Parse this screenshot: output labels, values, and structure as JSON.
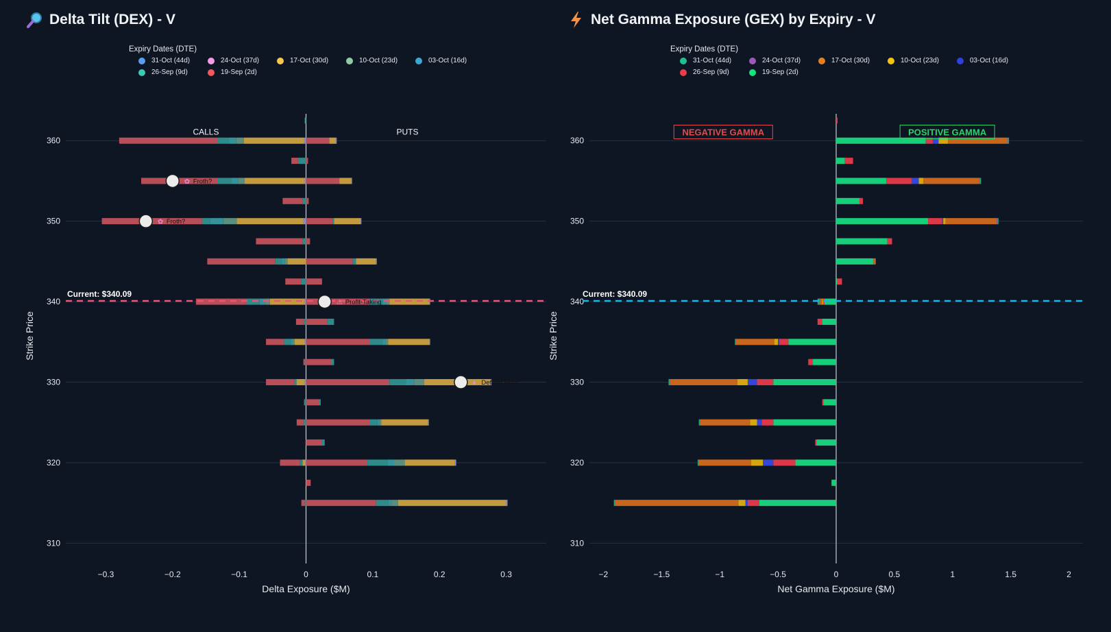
{
  "chart_data": [
    {
      "id": "dex",
      "type": "bar",
      "orientation": "horizontal",
      "stacked": true,
      "title": "Delta Tilt (DEX) - V",
      "title_icon": "magnifier-icon",
      "xlabel": "Delta Exposure ($M)",
      "ylabel": "Strike Price",
      "xlim": [
        -0.36,
        0.36
      ],
      "ylim": [
        308.5,
        363
      ],
      "xticks": [
        -0.3,
        -0.2,
        -0.1,
        0,
        0.1,
        0.2,
        0.3
      ],
      "xtick_labels": [
        "−0.3",
        "−0.2",
        "−0.1",
        "0",
        "0.1",
        "0.2",
        "0.3"
      ],
      "yticks": [
        310,
        320,
        330,
        340,
        350,
        360
      ],
      "legend_title": "Expiry Dates (DTE)",
      "series": [
        {
          "name": "31-Oct (44d)",
          "color": "#5b9bf0",
          "bar_color": "#7e8fcf"
        },
        {
          "name": "24-Oct (37d)",
          "color": "#f59be6",
          "bar_color": "#9a7fb8"
        },
        {
          "name": "17-Oct (30d)",
          "color": "#f7c84a",
          "bar_color": "#c49a3f"
        },
        {
          "name": "10-Oct (23d)",
          "color": "#8fcca6",
          "bar_color": "#5a8f7e"
        },
        {
          "name": "03-Oct (16d)",
          "color": "#3aa9d0",
          "bar_color": "#36939b"
        },
        {
          "name": "26-Sep (9d)",
          "color": "#3cc9b6",
          "bar_color": "#2f8a8a"
        },
        {
          "name": "19-Sep (2d)",
          "color": "#f5575f",
          "bar_color": "#b84e58"
        }
      ],
      "rows": [
        {
          "strike": 362.5,
          "neg": [
            0,
            0,
            0,
            0,
            0,
            0.002,
            0
          ],
          "pos": [
            0,
            0,
            0,
            0,
            0,
            0,
            0
          ]
        },
        {
          "strike": 360,
          "neg": [
            0.003,
            0,
            0.09,
            0.012,
            0.01,
            0.018,
            0.147
          ],
          "pos": [
            0.001,
            0,
            0.01,
            0,
            0,
            0,
            0.035
          ]
        },
        {
          "strike": 357.5,
          "neg": [
            0,
            0,
            0,
            0,
            0,
            0.012,
            0.01
          ],
          "pos": [
            0,
            0,
            0,
            0,
            0,
            0,
            0.003
          ]
        },
        {
          "strike": 355,
          "neg": [
            0.002,
            0,
            0.09,
            0.01,
            0.01,
            0.02,
            0.115
          ],
          "pos": [
            0.001,
            0,
            0.018,
            0,
            0,
            0,
            0.05
          ]
        },
        {
          "strike": 352.5,
          "neg": [
            0,
            0,
            0,
            0,
            0,
            0.005,
            0.03
          ],
          "pos": [
            0,
            0,
            0,
            0,
            0,
            0,
            0.004
          ]
        },
        {
          "strike": 350,
          "neg": [
            0.004,
            0,
            0.1,
            0.02,
            0.02,
            0.012,
            0.15
          ],
          "pos": [
            0.001,
            0,
            0.04,
            0,
            0,
            0.002,
            0.04
          ]
        },
        {
          "strike": 347.5,
          "neg": [
            0,
            0,
            0,
            0,
            0,
            0.005,
            0.07
          ],
          "pos": [
            0,
            0,
            0,
            0,
            0,
            0,
            0.006
          ]
        },
        {
          "strike": 345,
          "neg": [
            0,
            0,
            0.028,
            0.004,
            0.004,
            0.01,
            0.102
          ],
          "pos": [
            0.001,
            0,
            0.03,
            0,
            0,
            0.005,
            0.07
          ]
        },
        {
          "strike": 342.5,
          "neg": [
            0,
            0,
            0,
            0,
            0,
            0.007,
            0.024
          ],
          "pos": [
            0,
            0,
            0,
            0,
            0,
            0,
            0.024
          ]
        },
        {
          "strike": 340,
          "neg": [
            0.002,
            0,
            0.052,
            0.008,
            0.008,
            0.02,
            0.075
          ],
          "pos": [
            0.001,
            0,
            0.06,
            0.005,
            0.005,
            0.02,
            0.095
          ]
        },
        {
          "strike": 337.5,
          "neg": [
            0,
            0,
            0,
            0,
            0,
            0.003,
            0.012
          ],
          "pos": [
            0,
            0,
            0,
            0,
            0,
            0.01,
            0.032
          ]
        },
        {
          "strike": 335,
          "neg": [
            0.002,
            0,
            0.015,
            0.003,
            0.003,
            0.01,
            0.027
          ],
          "pos": [
            0.001,
            0,
            0.062,
            0.004,
            0.004,
            0.02,
            0.095
          ]
        },
        {
          "strike": 332.5,
          "neg": [
            0,
            0,
            0,
            0,
            0,
            0.001,
            0.003
          ],
          "pos": [
            0,
            0,
            0,
            0,
            0,
            0.004,
            0.038
          ]
        },
        {
          "strike": 330,
          "neg": [
            0.002,
            0,
            0.012,
            0.001,
            0.001,
            0.002,
            0.042
          ],
          "pos": [
            0.001,
            0,
            0.1,
            0.015,
            0.012,
            0.025,
            0.125
          ]
        },
        {
          "strike": 327.5,
          "neg": [
            0,
            0,
            0,
            0,
            0,
            0.003,
            0
          ],
          "pos": [
            0,
            0,
            0,
            0,
            0,
            0.002,
            0.02
          ]
        },
        {
          "strike": 325,
          "neg": [
            0,
            0,
            0,
            0,
            0,
            0.004,
            0.01
          ],
          "pos": [
            0.001,
            0,
            0.07,
            0.003,
            0.003,
            0.012,
            0.095
          ]
        },
        {
          "strike": 322.5,
          "neg": [
            0,
            0,
            0,
            0,
            0,
            0,
            0
          ],
          "pos": [
            0,
            0,
            0,
            0,
            0,
            0.004,
            0.024
          ]
        },
        {
          "strike": 320,
          "neg": [
            0.001,
            0,
            0.004,
            0.001,
            0.001,
            0.002,
            0.03
          ],
          "pos": [
            0.002,
            0,
            0.075,
            0.016,
            0.01,
            0.03,
            0.092
          ]
        },
        {
          "strike": 317.5,
          "neg": [
            0,
            0,
            0,
            0,
            0,
            0,
            0
          ],
          "pos": [
            0,
            0,
            0,
            0,
            0,
            0,
            0.007
          ]
        },
        {
          "strike": 315,
          "neg": [
            0,
            0,
            0,
            0,
            0,
            0.002,
            0.005
          ],
          "pos": [
            0.002,
            0,
            0.162,
            0.01,
            0.005,
            0.018,
            0.105
          ]
        }
      ],
      "side_labels": [
        "CALLS",
        "PUTS"
      ],
      "current_label": "Current: $340.09",
      "current_price": 340.09,
      "current_color": "#e8567a",
      "markers": [
        {
          "x": -0.2,
          "y": 355,
          "emoji": "✿",
          "text": "Froth?"
        },
        {
          "x": -0.24,
          "y": 350,
          "emoji": "✿",
          "text": "Froth?"
        },
        {
          "x": 0.028,
          "y": 340,
          "emoji": "⚠",
          "text": "Profit-Taking"
        },
        {
          "x": 0.232,
          "y": 330,
          "emoji": "♦",
          "text": "Defend Price"
        }
      ]
    },
    {
      "id": "gex",
      "type": "bar",
      "orientation": "horizontal",
      "stacked": true,
      "title": "Net Gamma Exposure (GEX) by Expiry - V",
      "title_icon": "lightning-icon",
      "xlabel": "Net Gamma Exposure ($M)",
      "ylabel": "Strike Price",
      "xlim": [
        -2.12,
        2.12
      ],
      "ylim": [
        308.5,
        363
      ],
      "xticks": [
        -2,
        -1.5,
        -1,
        -0.5,
        0,
        0.5,
        1,
        1.5,
        2
      ],
      "xtick_labels": [
        "−2",
        "−1.5",
        "−1",
        "−0.5",
        "0",
        "0.5",
        "1",
        "1.5",
        "2"
      ],
      "yticks": [
        310,
        320,
        330,
        340,
        350,
        360
      ],
      "legend_title": "Expiry Dates (DTE)",
      "series": [
        {
          "name": "31-Oct (44d)",
          "color": "#1fbf90",
          "bar_color": "#2a9f86"
        },
        {
          "name": "24-Oct (37d)",
          "color": "#9b59b6",
          "bar_color": "#8e5bb0"
        },
        {
          "name": "17-Oct (30d)",
          "color": "#e67e22",
          "bar_color": "#c8661e"
        },
        {
          "name": "10-Oct (23d)",
          "color": "#f1c40f",
          "bar_color": "#d4a70f"
        },
        {
          "name": "03-Oct (16d)",
          "color": "#2e40e0",
          "bar_color": "#3346d8"
        },
        {
          "name": "26-Sep (9d)",
          "color": "#eb3e4a",
          "bar_color": "#dc3848"
        },
        {
          "name": "19-Sep (2d)",
          "color": "#15e37e",
          "bar_color": "#17cf7a"
        }
      ],
      "segments": [
        {
          "strike": 362.5,
          "values": [
            0,
            0,
            0,
            0,
            0,
            0.012,
            0
          ]
        },
        {
          "strike": 360,
          "values": [
            0.01,
            0.005,
            0.51,
            0.08,
            0.05,
            0.06,
            0.77
          ]
        },
        {
          "strike": 357.5,
          "values": [
            0,
            0,
            0,
            0,
            0,
            0.07,
            0.075
          ]
        },
        {
          "strike": 355,
          "values": [
            0.01,
            0.005,
            0.48,
            0.04,
            0.06,
            0.22,
            0.43
          ]
        },
        {
          "strike": 352.5,
          "values": [
            0,
            0,
            0,
            0,
            0,
            0.03,
            0.2
          ]
        },
        {
          "strike": 350,
          "values": [
            0.01,
            0.005,
            0.44,
            0.02,
            0.01,
            0.12,
            0.79
          ]
        },
        {
          "strike": 347.5,
          "values": [
            0,
            0,
            0,
            0,
            0,
            0.04,
            0.44
          ]
        },
        {
          "strike": 345,
          "values": [
            0,
            0,
            0.02,
            0,
            0,
            0,
            0.32
          ]
        },
        {
          "strike": 342.5,
          "values": [
            0,
            0,
            0,
            0,
            0,
            0.04,
            0.01
          ]
        },
        {
          "strike": 340,
          "values": [
            -0.02,
            0,
            -0.02,
            -0.01,
            0,
            -0.01,
            -0.1
          ]
        },
        {
          "strike": 337.5,
          "values": [
            0,
            0,
            0,
            0,
            0,
            -0.04,
            -0.12
          ]
        },
        {
          "strike": 335,
          "values": [
            -0.01,
            0,
            -0.33,
            -0.03,
            -0.01,
            -0.08,
            -0.41
          ]
        },
        {
          "strike": 332.5,
          "values": [
            0,
            0,
            0,
            0,
            0,
            -0.04,
            -0.2
          ]
        },
        {
          "strike": 330,
          "values": [
            -0.01,
            0,
            -0.58,
            -0.09,
            -0.08,
            -0.14,
            -0.54
          ]
        },
        {
          "strike": 327.5,
          "values": [
            0,
            0,
            0,
            0,
            0,
            -0.01,
            -0.11
          ]
        },
        {
          "strike": 325,
          "values": [
            -0.01,
            0,
            -0.43,
            -0.06,
            -0.04,
            -0.1,
            -0.54
          ]
        },
        {
          "strike": 322.5,
          "values": [
            0,
            0,
            0,
            0,
            0,
            -0.01,
            -0.17
          ]
        },
        {
          "strike": 320,
          "values": [
            -0.01,
            0,
            -0.45,
            -0.1,
            -0.09,
            -0.19,
            -0.35
          ]
        },
        {
          "strike": 317.5,
          "values": [
            0,
            0,
            0,
            0,
            0,
            0,
            -0.04
          ]
        },
        {
          "strike": 315,
          "values": [
            -0.01,
            0,
            -1.06,
            -0.06,
            -0.02,
            -0.1,
            -0.66
          ]
        }
      ],
      "region_labels": [
        "NEGATIVE GAMMA",
        "POSITIVE GAMMA"
      ],
      "region_colors": [
        "#e34b4b",
        "#2bd26a"
      ],
      "current_label": "Current: $340.09",
      "current_price": 340.09,
      "current_color": "#1ab8e8"
    }
  ]
}
